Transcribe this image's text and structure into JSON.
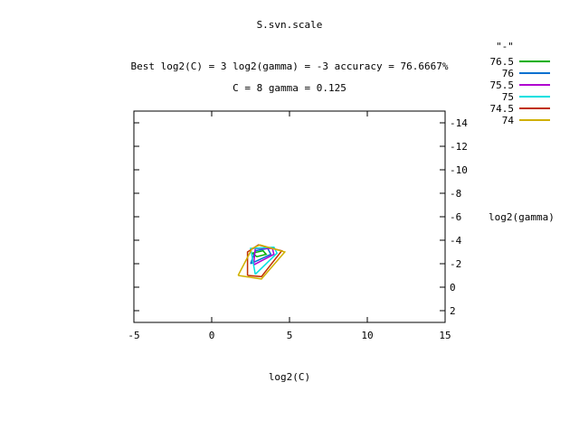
{
  "chart_data": {
    "type": "contour",
    "title": "S.svn.scale",
    "subtitle_line1": "Best log2(C) = 3  log2(gamma) = -3  accuracy = 76.6667%",
    "subtitle_line2": "C = 8  gamma = 0.125",
    "xlabel": "log2(C)",
    "ylabel": "log2(gamma)",
    "xlim": [
      -5,
      15
    ],
    "ylim": [
      -15,
      3
    ],
    "y_reversed": true,
    "x_ticks": [
      "-5",
      "0",
      "5",
      "10",
      "15"
    ],
    "y_ticks": [
      "-14",
      "-12",
      "-10",
      "-8",
      "-6",
      "-4",
      "-2",
      "0",
      "2"
    ],
    "legend_title": "\"-\"",
    "legend_position": "top-right",
    "grid": false,
    "series": [
      {
        "name": "76.5",
        "color": "#00b000",
        "points": [
          [
            2.6,
            -2.9
          ],
          [
            3.3,
            -3.1
          ],
          [
            3.5,
            -2.8
          ],
          [
            2.9,
            -2.6
          ],
          [
            2.6,
            -2.9
          ]
        ]
      },
      {
        "name": "76",
        "color": "#0070d0",
        "points": [
          [
            2.5,
            -2.0
          ],
          [
            2.8,
            -3.1
          ],
          [
            3.6,
            -3.3
          ],
          [
            3.8,
            -2.8
          ],
          [
            3.0,
            -2.3
          ],
          [
            2.5,
            -2.0
          ]
        ]
      },
      {
        "name": "75.5",
        "color": "#b000d0",
        "points": [
          [
            2.7,
            -1.9
          ],
          [
            2.8,
            -3.3
          ],
          [
            3.9,
            -3.3
          ],
          [
            4.0,
            -2.8
          ],
          [
            2.7,
            -1.9
          ]
        ]
      },
      {
        "name": "75",
        "color": "#00e0e0",
        "points": [
          [
            2.8,
            -1.1
          ],
          [
            2.5,
            -3.3
          ],
          [
            4.0,
            -3.4
          ],
          [
            4.2,
            -2.9
          ],
          [
            2.8,
            -1.1
          ]
        ]
      },
      {
        "name": "74.5",
        "color": "#c03000",
        "points": [
          [
            2.3,
            -1.0
          ],
          [
            2.3,
            -3.0
          ],
          [
            3.0,
            -3.6
          ],
          [
            4.5,
            -3.1
          ],
          [
            3.2,
            -0.9
          ],
          [
            2.3,
            -1.0
          ]
        ]
      },
      {
        "name": "74",
        "color": "#d0b000",
        "points": [
          [
            1.7,
            -1.0
          ],
          [
            2.6,
            -3.3
          ],
          [
            3.1,
            -3.6
          ],
          [
            4.7,
            -3.0
          ],
          [
            3.2,
            -0.7
          ],
          [
            1.7,
            -1.0
          ]
        ]
      }
    ]
  }
}
